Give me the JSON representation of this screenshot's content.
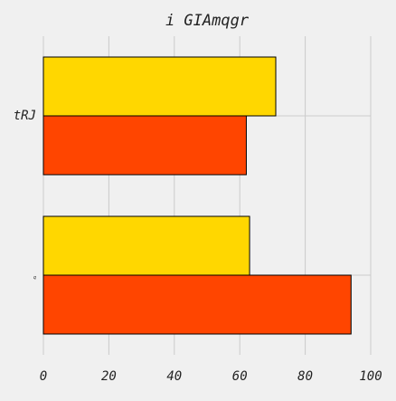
{
  "chart_data": {
    "type": "bar",
    "orientation": "horizontal",
    "title": "i GIAmqgr",
    "xlabel": "",
    "ylabel": "",
    "categories": [
      "q",
      "tRJ"
    ],
    "series": [
      {
        "values": [
          94,
          62
        ],
        "color": "#ff4500"
      },
      {
        "values": [
          63,
          71
        ],
        "color": "#ffd700"
      }
    ],
    "xlim": [
      0,
      100
    ],
    "xticks": [
      0,
      20,
      40,
      60,
      80,
      100
    ],
    "grid": true,
    "legend": "none",
    "colors": {
      "background": "#f0f0f0",
      "grid": "#cbcbcb",
      "edge": "#000000"
    }
  }
}
